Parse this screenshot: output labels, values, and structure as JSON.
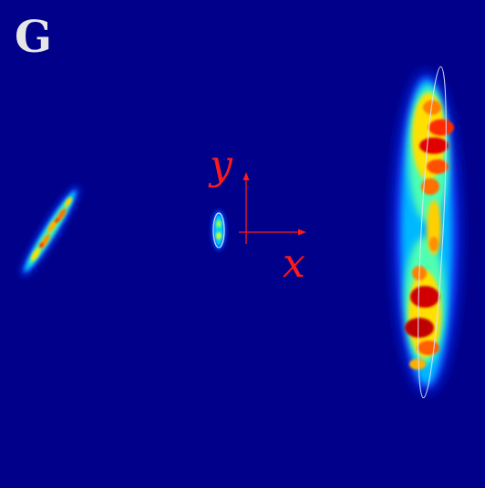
{
  "logo": {
    "letter": "G",
    "icon": "gothic-g-logo-icon",
    "color": "#e6e6e6"
  },
  "axes": {
    "x_label": "x",
    "y_label": "y",
    "color": "#ff1a1a"
  },
  "colors": {
    "background": "#00008a",
    "colormap": "jet",
    "ellipse_outline": "#d8e6ff"
  },
  "blobs": [
    {
      "name": "left-streak-blob"
    },
    {
      "name": "center-small-blob"
    },
    {
      "name": "right-elongated-blob"
    }
  ]
}
